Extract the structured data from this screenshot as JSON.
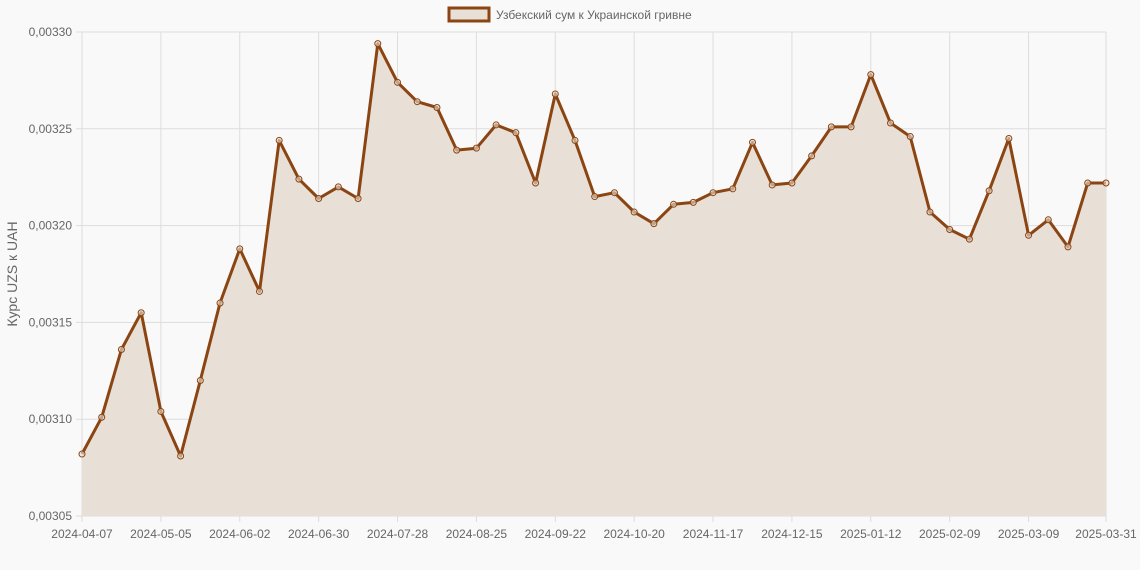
{
  "chart_data": {
    "type": "area",
    "title": "",
    "legend": {
      "position": "top",
      "entries": [
        "Узбекский сум к Украинской гривне"
      ]
    },
    "xlabel": "",
    "ylabel": "Курс UZS к UAH",
    "ylim": [
      0.00305,
      0.0033
    ],
    "yticks": [
      "0,00305",
      "0,00310",
      "0,00315",
      "0,00320",
      "0,00325",
      "0,00330"
    ],
    "xticks": [
      "2024-04-07",
      "2024-05-05",
      "2024-06-02",
      "2024-06-30",
      "2024-07-28",
      "2024-08-25",
      "2024-09-22",
      "2024-10-20",
      "2024-11-17",
      "2024-12-15",
      "2025-01-12",
      "2025-02-09",
      "2025-03-09",
      "2025-03-31"
    ],
    "grid": true,
    "colors": {
      "line": "#8b4513",
      "fill": "#e8e0d6",
      "grid": "#dddddd"
    },
    "series": [
      {
        "name": "Узбекский сум к Украинской гривне",
        "values": [
          0.003082,
          0.003101,
          0.003136,
          0.003155,
          0.003104,
          0.003081,
          0.00312,
          0.00316,
          0.003188,
          0.003166,
          0.003244,
          0.003224,
          0.003214,
          0.00322,
          0.003214,
          0.003294,
          0.003274,
          0.003264,
          0.003261,
          0.003239,
          0.00324,
          0.003252,
          0.003248,
          0.003222,
          0.003268,
          0.003244,
          0.003215,
          0.003217,
          0.003207,
          0.003201,
          0.003211,
          0.003212,
          0.003217,
          0.003219,
          0.003243,
          0.003221,
          0.003222,
          0.003236,
          0.003251,
          0.003251,
          0.003278,
          0.003253,
          0.003246,
          0.003207,
          0.003198,
          0.003193,
          0.003218,
          0.003245,
          0.003195,
          0.003203,
          0.003189,
          0.003222,
          0.003222
        ]
      }
    ]
  }
}
